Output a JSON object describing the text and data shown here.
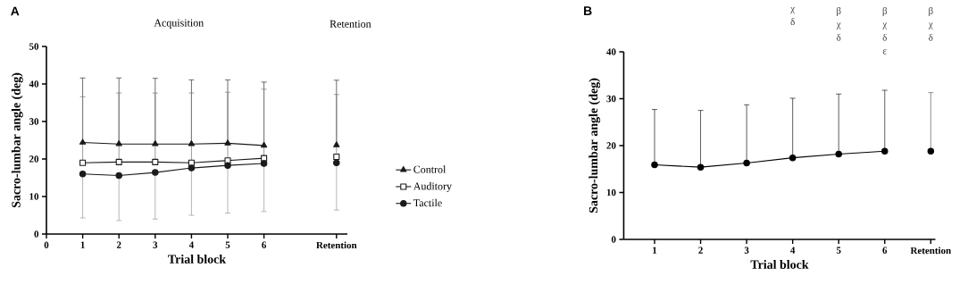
{
  "chart_data": [
    {
      "type": "line",
      "title": "A",
      "xlabel": "Trial block",
      "ylabel": "Sacro-lumbar angle (deg)",
      "annotations": [
        "Acquisition",
        "Retention"
      ],
      "x": [
        1,
        2,
        3,
        4,
        5,
        6,
        7,
        8
      ],
      "xlim": [
        0,
        8.3
      ],
      "xticks": [
        0,
        1,
        2,
        3,
        4,
        5,
        6,
        {
          "value": 8,
          "label": "Retention"
        }
      ],
      "ylim": [
        0,
        50
      ],
      "yticks": [
        0,
        10,
        20,
        30,
        40,
        50
      ],
      "legend": "right",
      "series": [
        {
          "name": "Control",
          "color": "#1a1a1a",
          "marker": "triangle",
          "values": [
            24.4,
            24.0,
            24.0,
            24.0,
            24.2,
            23.6,
            null,
            23.7
          ],
          "errors": [
            [
              24.4,
              41.6
            ],
            [
              24.0,
              41.6
            ],
            [
              24.0,
              41.5
            ],
            [
              24.0,
              41.1
            ],
            [
              24.2,
              41.1
            ],
            [
              23.6,
              40.5
            ],
            null,
            [
              23.7,
              41.0
            ]
          ]
        },
        {
          "name": "Auditory",
          "color": "#1a1a1a",
          "marker": "square",
          "values": [
            19.0,
            19.2,
            19.2,
            19.0,
            19.6,
            20.2,
            null,
            20.6
          ],
          "errors": [
            [
              19.0,
              36.6
            ],
            [
              19.2,
              37.6
            ],
            [
              19.2,
              37.6
            ],
            [
              19.0,
              37.6
            ],
            [
              19.6,
              37.8
            ],
            [
              20.2,
              38.6
            ],
            null,
            [
              20.6,
              37.2
            ]
          ]
        },
        {
          "name": "Tactile",
          "color": "#1a1a1a",
          "marker": "circle",
          "values": [
            16.0,
            15.6,
            16.4,
            17.6,
            18.3,
            18.8,
            null,
            19.0
          ],
          "errors": [
            [
              4.3,
              16.0
            ],
            [
              3.6,
              15.6
            ],
            [
              4.0,
              16.4
            ],
            [
              5.0,
              17.6
            ],
            [
              5.6,
              18.3
            ],
            [
              6.0,
              18.8
            ],
            null,
            [
              6.4,
              19.0
            ]
          ]
        }
      ]
    },
    {
      "type": "line",
      "title": "B",
      "xlabel": "Trial block",
      "ylabel": "Sacro-lumbar angle (deg)",
      "categories": [
        "1",
        "2",
        "3",
        "4",
        "5",
        "6",
        "Retention"
      ],
      "ylim": [
        0,
        40
      ],
      "yticks": [
        0,
        10,
        20,
        30,
        40
      ],
      "series": [
        {
          "type": "line",
          "color": "#000000",
          "marker": "circle",
          "values": [
            15.9,
            15.4,
            16.3,
            17.4,
            18.2,
            18.8,
            null
          ],
          "errors": [
            [
              15.9,
              27.7
            ],
            [
              15.4,
              27.5
            ],
            [
              16.3,
              28.7
            ],
            [
              17.4,
              30.1
            ],
            [
              18.2,
              31.0
            ],
            [
              18.8,
              31.8
            ],
            null
          ]
        },
        {
          "type": "scatter",
          "color": "#000000",
          "marker": "circle",
          "values": [
            null,
            null,
            null,
            null,
            null,
            null,
            18.8
          ],
          "errors": [
            null,
            null,
            null,
            null,
            null,
            null,
            [
              18.8,
              31.3
            ]
          ]
        }
      ],
      "annotations": [
        "χ δ",
        "β χ δ",
        "β χ δ ε",
        "β χ δ"
      ]
    }
  ]
}
